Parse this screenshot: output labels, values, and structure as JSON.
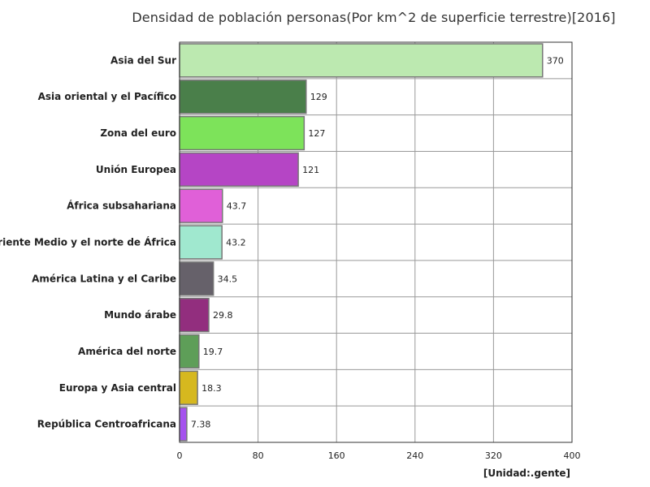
{
  "chart_data": {
    "type": "bar",
    "orientation": "horizontal",
    "title": "Densidad de población personas(Por km^2 de superficie terrestre)[2016]",
    "unit_label": "[Unidad:.gente]",
    "categories": [
      "Asia del Sur",
      "Asia oriental y el Pacífico",
      "Zona del euro",
      "Unión Europea",
      "África subsahariana",
      "Oriente Medio y el norte de África",
      "América Latina y el Caribe",
      "Mundo árabe",
      "América del norte",
      "Europa y Asia central",
      "República Centroafricana"
    ],
    "values": [
      370,
      129,
      127,
      121,
      43.7,
      43.2,
      34.5,
      29.8,
      19.7,
      18.3,
      7.38
    ],
    "value_labels": [
      "370",
      "129",
      "127",
      "121",
      "43.7",
      "43.2",
      "34.5",
      "29.8",
      "19.7",
      "18.3",
      "7.38"
    ],
    "colors": [
      "#bce9b0",
      "#4a7f4a",
      "#7de35a",
      "#b545c5",
      "#e060d8",
      "#a0e8cf",
      "#66616a",
      "#922e7e",
      "#5e9e58",
      "#d6b81f",
      "#a552ee"
    ],
    "xlim": [
      0,
      400
    ],
    "xticks": [
      "0",
      "80",
      "160",
      "240",
      "320",
      "400"
    ],
    "grid": true,
    "legend": "none"
  }
}
